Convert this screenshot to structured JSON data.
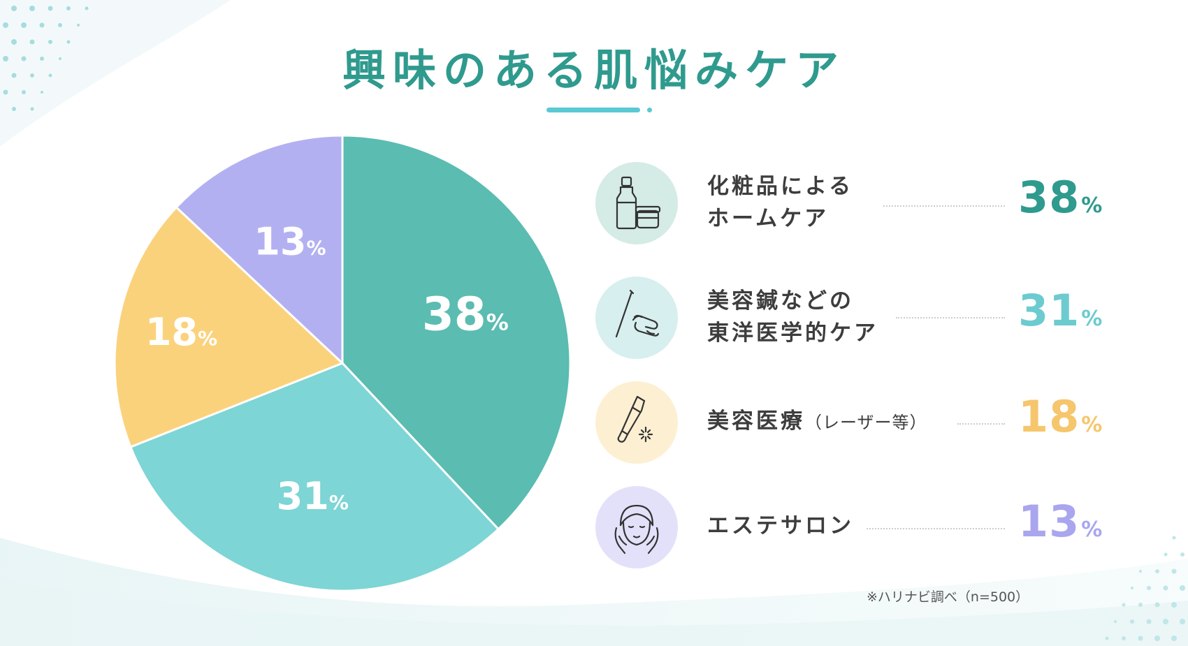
{
  "title": "興味のある肌悩みケア",
  "percent_sign": "%",
  "footnote": "※ハリナビ調べ（n=500）",
  "chart_data": {
    "type": "pie",
    "categories": [
      "化粧品によるホームケア",
      "美容鍼などの東洋医学的ケア",
      "美容医療（レーザー等）",
      "エステサロン"
    ],
    "values": [
      38,
      31,
      18,
      13
    ],
    "unit": "%",
    "colors": [
      "#5bbcb1",
      "#7dd5d5",
      "#fbd27c",
      "#b3b0f2"
    ],
    "value_text_colors": [
      "#2f9a8e",
      "#6ccbcf",
      "#f6c66d",
      "#a9a6ef"
    ],
    "icon_bg_colors": [
      "#d5ebe6",
      "#d7efee",
      "#fdefd2",
      "#e3e1fa"
    ],
    "legend_placement": "right",
    "legend": [
      {
        "line1": "化粧品による",
        "line2": "ホームケア",
        "value": "38",
        "icon": "cosmetics-bottle-icon"
      },
      {
        "line1": "美容鍼などの",
        "line2": "東洋医学的ケア",
        "value": "31",
        "icon": "acupuncture-needle-icon"
      },
      {
        "line1": "美容医療",
        "sub": "（レーザー等）",
        "value": "18",
        "icon": "laser-device-icon"
      },
      {
        "line1": "エステサロン",
        "value": "13",
        "icon": "facial-esthetic-icon"
      }
    ]
  }
}
